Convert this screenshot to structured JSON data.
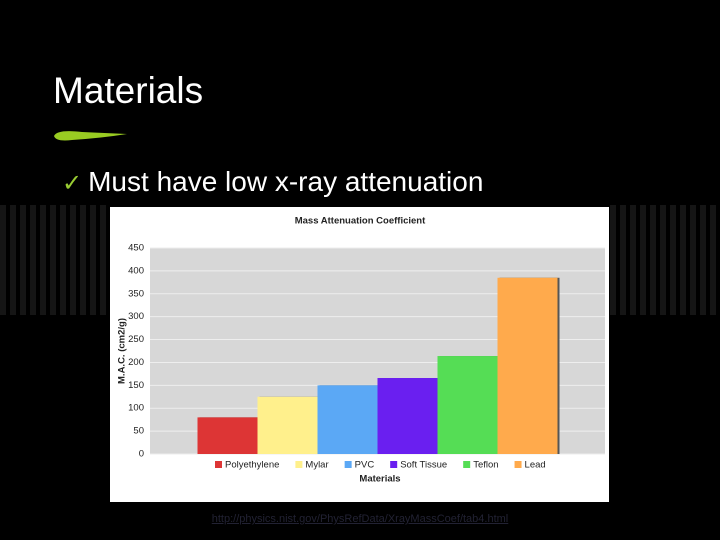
{
  "slide": {
    "title": "Materials",
    "bullet": "Must have low x-ray attenuation",
    "link": "http://physics.nist.gov/PhysRefData/XrayMassCoef/tab4.html"
  },
  "chart_data": {
    "type": "bar",
    "title": "Mass Attenuation Coefficient",
    "y_label": "M.A.C. (cm2/g)",
    "x_label": "Materials",
    "ylim": [
      0,
      450
    ],
    "yticks": [
      0,
      50,
      100,
      150,
      200,
      250,
      300,
      350,
      400,
      450
    ],
    "grid": true,
    "series": [
      {
        "name": "Polyethylene",
        "color": "#dd3535",
        "values": [
          80
        ]
      },
      {
        "name": "Mylar",
        "color": "#fff08c",
        "values": [
          125
        ]
      },
      {
        "name": "PVC",
        "color": "#5ba8f5",
        "values": [
          150
        ]
      },
      {
        "name": "Soft Tissue",
        "color": "#6a1ff0",
        "values": [
          166
        ]
      },
      {
        "name": "Teflon",
        "color": "#55dd55",
        "values": [
          214
        ]
      },
      {
        "name": "Lead",
        "color": "#ffaa4c",
        "values": [
          385
        ]
      }
    ]
  }
}
